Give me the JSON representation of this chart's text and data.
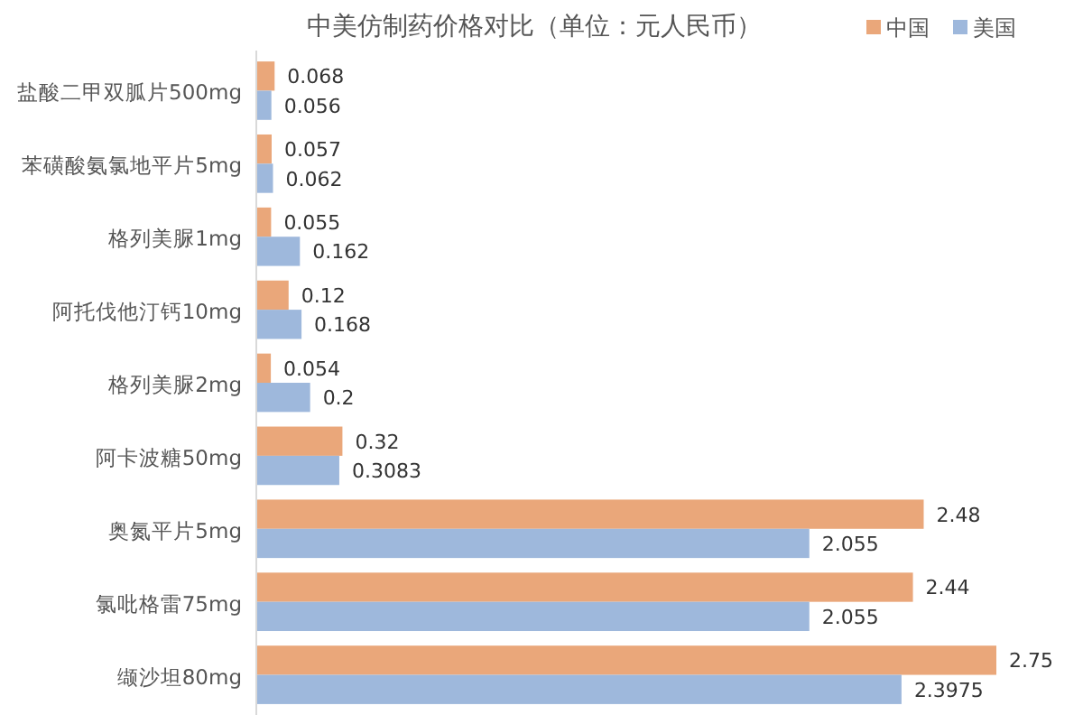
{
  "chart_data": {
    "type": "bar",
    "orientation": "horizontal",
    "title": "中美仿制药价格对比（单位：元人民币）",
    "categories": [
      "盐酸二甲双胍片500mg",
      "苯磺酸氨氯地平片5mg",
      "格列美脲1mg",
      "阿托伐他汀钙10mg",
      "格列美脲2mg",
      "阿卡波糖50mg",
      "奥氮平片5mg",
      "氯吡格雷75mg",
      "缬沙坦80mg"
    ],
    "series": [
      {
        "name": "中国",
        "color": "#eaa77a",
        "values": [
          0.068,
          0.057,
          0.055,
          0.12,
          0.054,
          0.32,
          2.48,
          2.44,
          2.75
        ]
      },
      {
        "name": "美国",
        "color": "#9eb8dc",
        "values": [
          0.056,
          0.062,
          0.162,
          0.168,
          0.2,
          0.3083,
          2.055,
          2.055,
          2.3975
        ]
      }
    ],
    "data_labels": true,
    "legend": "top right"
  }
}
